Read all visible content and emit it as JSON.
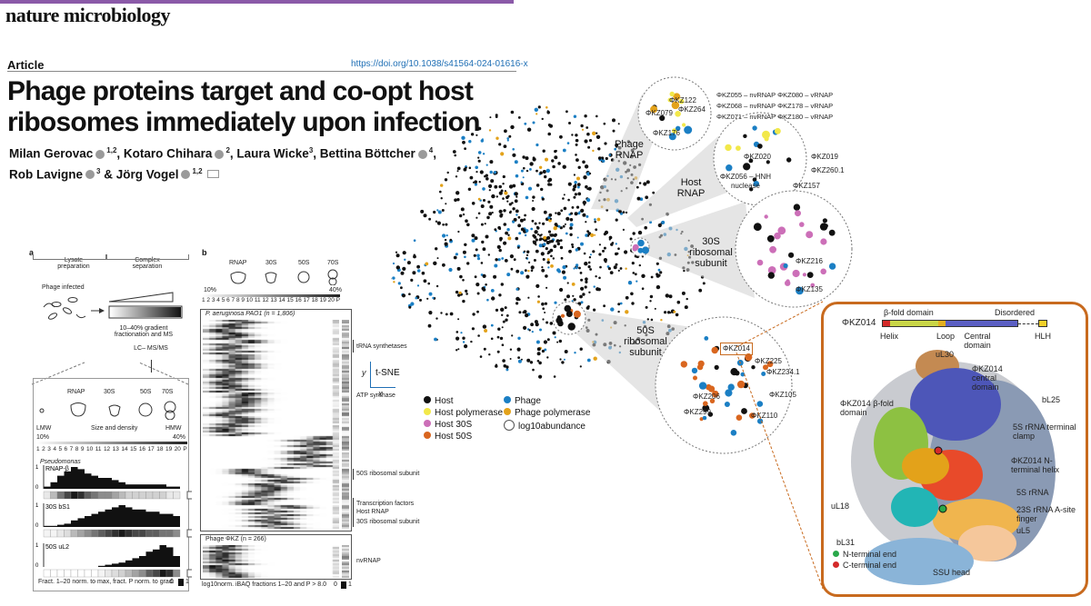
{
  "header": {
    "journal": "nature microbiology",
    "article_type": "Article",
    "doi": "https://doi.org/10.1038/s41564-024-01616-x",
    "title_line1": "Phage proteins target and co-opt host",
    "title_line2": "ribosomes immediately upon infection",
    "authors_line1": [
      "Milan Gerovac",
      "1,2",
      ", Kotaro Chihara",
      "2",
      ", Laura Wicke",
      "3",
      ", Bettina Böttcher",
      "4",
      ","
    ],
    "authors_line2": [
      "Rob Lavigne",
      "3",
      " & Jörg Vogel",
      "1,2"
    ]
  },
  "panel_a": {
    "label": "a",
    "step1": "Lysate preparation",
    "step2": "Complex separation",
    "phage_infected": "Phage infected",
    "gradient": "10–40% gradient fractionation and MS",
    "lcms": "LC– MS/MS",
    "species": [
      "RNAP",
      "30S",
      "50S",
      "70S"
    ],
    "lmw": "LMW",
    "size_density": "Size and density",
    "hmw": "HMW",
    "pct_low": "10%",
    "pct_high": "40%",
    "fractions": [
      "1",
      "2",
      "3",
      "4",
      "5",
      "6",
      "7",
      "8",
      "9",
      "10",
      "11",
      "12",
      "13",
      "14",
      "15",
      "16",
      "17",
      "18",
      "19",
      "20",
      "P"
    ],
    "pseudomonas": "Pseudomonas",
    "profiles": [
      {
        "name": "RNAP-β",
        "values": [
          0.1,
          0.3,
          0.6,
          0.8,
          1.0,
          0.9,
          0.7,
          0.6,
          0.5,
          0.5,
          0.4,
          0.3,
          0.2,
          0.2,
          0.2,
          0.2,
          0.2,
          0.2,
          0.1,
          0.1
        ]
      },
      {
        "name": "30S bS1",
        "values": [
          0.05,
          0.05,
          0.1,
          0.15,
          0.3,
          0.4,
          0.5,
          0.6,
          0.7,
          0.8,
          0.9,
          1.0,
          0.9,
          0.8,
          0.8,
          0.7,
          0.7,
          0.6,
          0.6,
          0.5
        ]
      },
      {
        "name": "50S uL2",
        "values": [
          0,
          0,
          0,
          0,
          0,
          0,
          0,
          0,
          0.05,
          0.1,
          0.15,
          0.2,
          0.3,
          0.4,
          0.5,
          0.7,
          0.8,
          1.0,
          0.9,
          0.5
        ]
      }
    ],
    "y_one": "1",
    "y_zero": "0",
    "footer": "Fract. 1–20 norm. to max, fract. P norm. to grad.",
    "scale_0": "0",
    "scale_1": "1"
  },
  "panel_b": {
    "label": "b",
    "species": [
      "RNAP",
      "30S",
      "50S",
      "70S"
    ],
    "pct_low": "10%",
    "pct_high": "40%",
    "fractions": [
      "1",
      "2",
      "3",
      "4",
      "5",
      "6",
      "7",
      "8",
      "9",
      "10",
      "11",
      "12",
      "13",
      "14",
      "15",
      "16",
      "17",
      "18",
      "19",
      "20",
      "P"
    ],
    "host_title": "P. aeruginosa PAO1 (n = 1,806)",
    "phage_title": "Phage ΦKZ (n = 266)",
    "annotations": [
      "tRNA synthetases",
      "ATP synthase",
      "50S ribosomal subunit",
      "Transcription factors",
      "Host RNAP",
      "30S ribosomal subunit",
      "nvRNAP"
    ],
    "axis_y": "y",
    "axis_x": "x",
    "tsne": "t-SNE",
    "footer": "log10norm. iBAQ fractions 1–20 and P > 8.0",
    "scale_0": "0",
    "scale_1": "1"
  },
  "tsne": {
    "callouts": [
      "Phage RNAP",
      "Host RNAP",
      "30S ribosomal subunit",
      "50S ribosomal subunit"
    ],
    "labels_phage_rnap": [
      "ΦKZ122",
      "ΦKZ264",
      "ΦKZ079",
      "ΦKZ176"
    ],
    "rnap_list": [
      "ΦKZ055 – nvRNAP ΦKZ080 – vRNAP",
      "ΦKZ068 – nvRNAP ΦKZ178 – vRNAP",
      "ΦKZ071 – nvRNAP ΦKZ180 – vRNAP"
    ],
    "labels_host_rnap": [
      "ΦKZ020",
      "ΦKZ019",
      "ΦKZ260.1",
      "ΦKZ056 – HNH nuclease",
      "ΦKZ157"
    ],
    "labels_30s": [
      "ΦKZ216",
      "ΦKZ135"
    ],
    "labels_50s": [
      "ΦKZ014",
      "ΦKZ225",
      "ΦKZ234.1",
      "ΦKZ206",
      "ΦKZ105",
      "ΦKZ299",
      "ΦKZ110"
    ],
    "legend": [
      {
        "label": "Host",
        "color": "#111111"
      },
      {
        "label": "Phage",
        "color": "#1b7fc4"
      },
      {
        "label": "Host polymerase",
        "color": "#f2e84a"
      },
      {
        "label": "Phage polymerase",
        "color": "#e3a21a"
      },
      {
        "label": "Host 30S",
        "color": "#cc6fb8"
      },
      {
        "label": "Host 50S",
        "color": "#d9661f"
      }
    ],
    "abundance": "log10abundance"
  },
  "structure": {
    "protein": "ΦKZ014",
    "domains": [
      "β-fold domain",
      "Disordered",
      "Helix",
      "Loop",
      "Central domain",
      "HLH"
    ],
    "labels": [
      "uL30",
      "ΦKZ014 central domain",
      "bL25",
      "ΦKZ014 β-fold domain",
      "5S rRNA terminal clamp",
      "ΦKZ014 N-terminal helix",
      "uL18",
      "5S rRNA",
      "23S rRNA A-site finger",
      "uL5",
      "bL31",
      "SSU head"
    ],
    "legend": [
      "N-terminal end",
      "C-terminal end"
    ],
    "legend_colors": [
      "#2aa84a",
      "#d42a2a"
    ]
  }
}
